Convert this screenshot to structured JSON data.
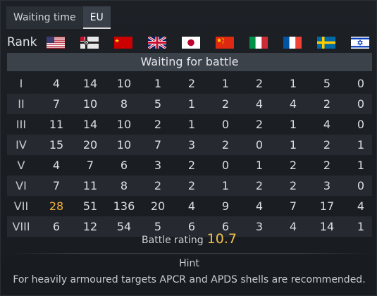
{
  "tabs": [
    {
      "label": "Waiting time",
      "active": false
    },
    {
      "label": "EU",
      "active": true
    }
  ],
  "header": {
    "rank_label": "Rank",
    "nations": [
      {
        "icon": "usa-flag-icon"
      },
      {
        "icon": "germany-flag-icon"
      },
      {
        "icon": "ussr-flag-icon"
      },
      {
        "icon": "britain-flag-icon"
      },
      {
        "icon": "japan-flag-icon"
      },
      {
        "icon": "china-flag-icon"
      },
      {
        "icon": "italy-flag-icon"
      },
      {
        "icon": "france-flag-icon"
      },
      {
        "icon": "sweden-flag-icon"
      },
      {
        "icon": "israel-flag-icon"
      }
    ]
  },
  "waiting_label": "Waiting for battle",
  "rows": [
    {
      "rank": "I",
      "values": [
        "4",
        "14",
        "10",
        "1",
        "2",
        "1",
        "2",
        "1",
        "5",
        "0"
      ]
    },
    {
      "rank": "II",
      "values": [
        "7",
        "10",
        "8",
        "5",
        "1",
        "2",
        "4",
        "4",
        "2",
        "0"
      ]
    },
    {
      "rank": "III",
      "values": [
        "11",
        "14",
        "10",
        "2",
        "1",
        "0",
        "2",
        "1",
        "4",
        "0"
      ]
    },
    {
      "rank": "IV",
      "values": [
        "15",
        "20",
        "10",
        "7",
        "3",
        "2",
        "0",
        "1",
        "2",
        "1"
      ]
    },
    {
      "rank": "V",
      "values": [
        "4",
        "7",
        "6",
        "3",
        "2",
        "0",
        "1",
        "2",
        "2",
        "1"
      ]
    },
    {
      "rank": "VI",
      "values": [
        "7",
        "11",
        "8",
        "2",
        "2",
        "1",
        "2",
        "2",
        "3",
        "0"
      ]
    },
    {
      "rank": "VII",
      "values": [
        "28",
        "51",
        "136",
        "20",
        "4",
        "9",
        "4",
        "7",
        "17",
        "4"
      ],
      "highlight_index": 0
    },
    {
      "rank": "VIII",
      "values": [
        "6",
        "12",
        "54",
        "5",
        "6",
        "6",
        "3",
        "4",
        "14",
        "1"
      ]
    }
  ],
  "battle_rating": {
    "label": "Battle rating",
    "value": "10.7"
  },
  "hint": {
    "title": "Hint",
    "text": "For heavily armoured targets APCR and APDS shells are recommended."
  },
  "colors": {
    "highlight": "#f0b040",
    "rating": "#f2c14a"
  }
}
